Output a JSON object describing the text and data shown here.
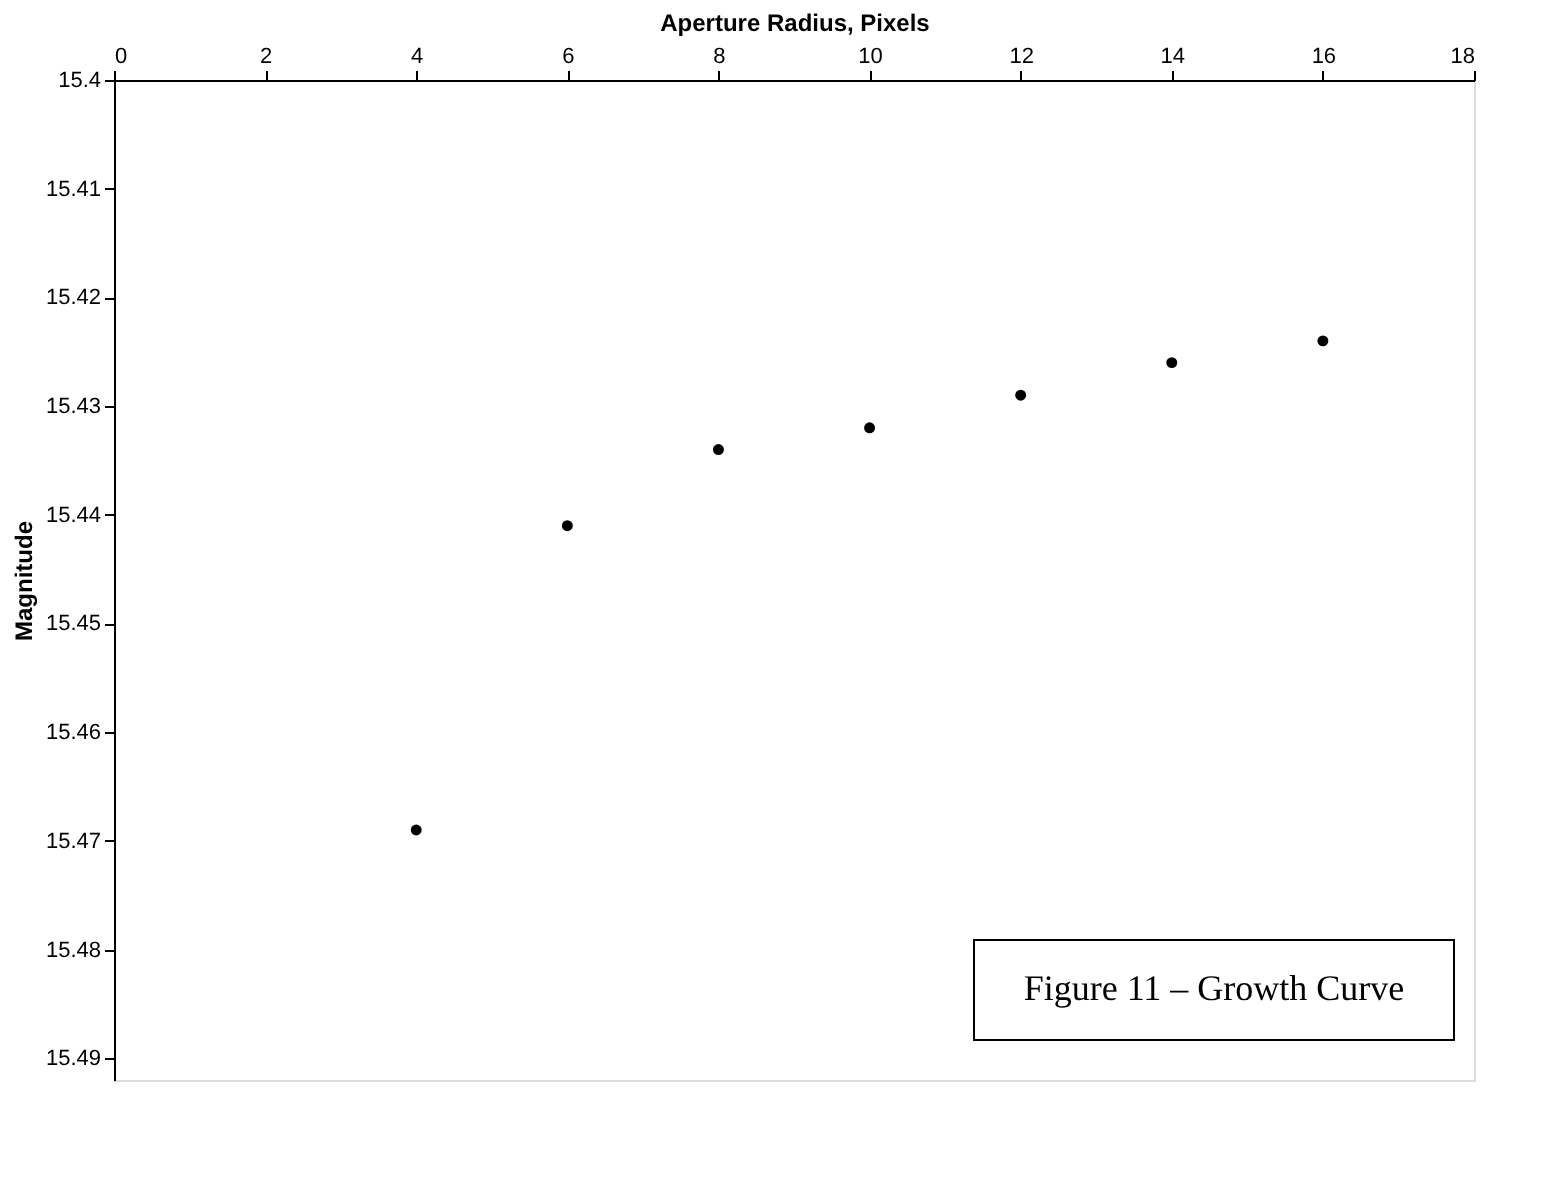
{
  "chart_data": {
    "type": "scatter",
    "xlabel": "Aperture Radius, Pixels",
    "ylabel": "Magnitude",
    "x": [
      4,
      6,
      8,
      10,
      12,
      14,
      16
    ],
    "values": [
      15.469,
      15.441,
      15.434,
      15.432,
      15.429,
      15.426,
      15.424
    ],
    "color": "#000000",
    "marker": "circle",
    "grid": false,
    "xlim": [
      0,
      18
    ],
    "xticks": [
      0,
      2,
      4,
      6,
      8,
      10,
      12,
      14,
      16,
      18
    ],
    "ylim": [
      15.492,
      15.4
    ],
    "yticks": [
      15.4,
      15.41,
      15.42,
      15.43,
      15.44,
      15.45,
      15.46,
      15.47,
      15.48,
      15.49
    ],
    "annotations": [
      "Figure 11 – Growth Curve"
    ]
  }
}
